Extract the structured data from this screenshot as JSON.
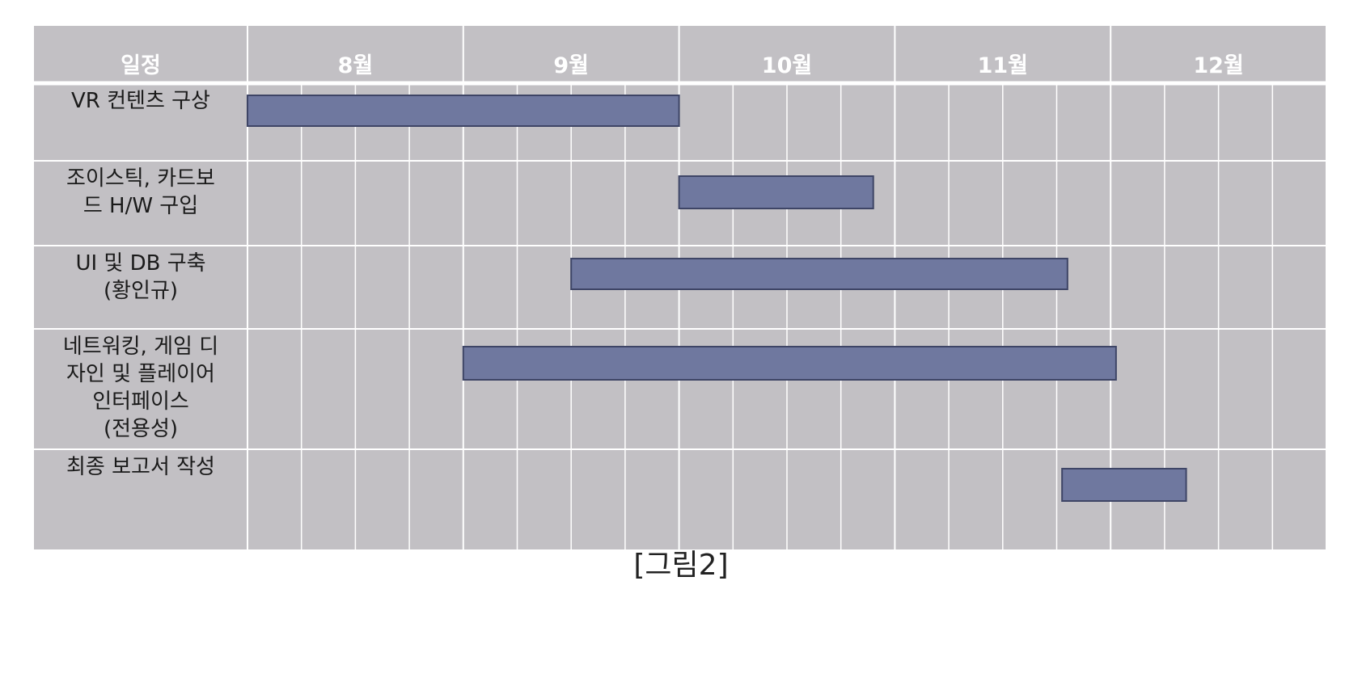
{
  "chart_data": {
    "type": "gantt",
    "header_label": "일정",
    "periods": [
      "8월",
      "9월",
      "10월",
      "11월",
      "12월"
    ],
    "subdivisions_per_period": 4,
    "tasks": [
      {
        "label_lines": [
          "VR 컨텐츠 구상"
        ],
        "start": 0,
        "end": 8
      },
      {
        "label_lines": [
          "조이스틱, 카드보",
          "드 H/W 구입"
        ],
        "start": 8,
        "end": 11.6
      },
      {
        "label_lines": [
          "UI 및 DB 구축",
          "(황인규)"
        ],
        "start": 6,
        "end": 15.2
      },
      {
        "label_lines": [
          "네트워킹, 게임 디",
          "자인 및 플레이어",
          "인터페이스",
          "(전용성)"
        ],
        "start": 4,
        "end": 16.1
      },
      {
        "label_lines": [
          "최종 보고서 작성"
        ],
        "start": 15.1,
        "end": 17.4
      }
    ],
    "colors": {
      "background": "#c2c0c4",
      "gridline": "#ffffff",
      "bar_fill": "#6f789f",
      "bar_stroke": "#3e4566"
    }
  },
  "caption": "[그림2]"
}
